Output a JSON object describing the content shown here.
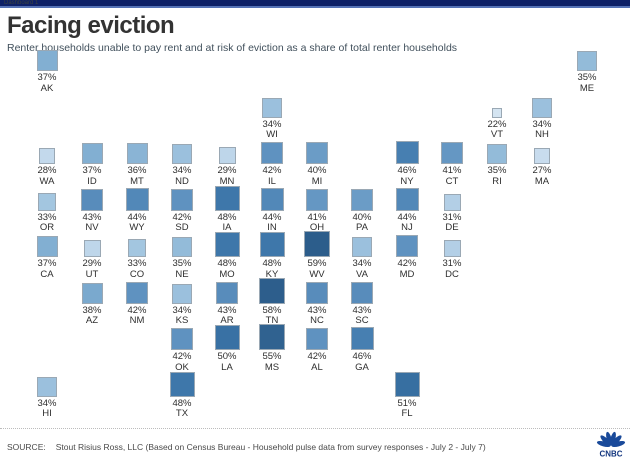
{
  "top_bar": {
    "label": "Dashboard 1",
    "bg": "#0e2066"
  },
  "header": {
    "title": "Facing eviction",
    "subtitle": "Renter households unable to pay rent and at risk of eviction as a share of total renter households"
  },
  "footer": {
    "source_label": "SOURCE:",
    "source_text": "Stout Risius Ross, LLC (Based on Census Bureau - Household pulse data from survey responses - July 2 - July 7)",
    "logo_text": "CNBC",
    "logo_color": "#1a4a9a"
  },
  "chart_data": {
    "type": "heatmap",
    "subtype": "us-state-tile-cartogram",
    "title": "Facing eviction",
    "subtitle": "Renter households unable to pay rent and at risk of eviction as a share of total renter households",
    "unit": "%",
    "value_range": [
      22,
      59
    ],
    "encoding": {
      "color": "value, light blue (low) to dark navy (high)",
      "size": "square size scales with value"
    },
    "states": [
      {
        "abbr": "AK",
        "value": 37,
        "col": 0,
        "row": 0,
        "color": "#82afd2"
      },
      {
        "abbr": "ME",
        "value": 35,
        "col": 12,
        "row": 0,
        "color": "#93bbd9"
      },
      {
        "abbr": "WI",
        "value": 34,
        "col": 5,
        "row": 1,
        "color": "#9bc0dd"
      },
      {
        "abbr": "VT",
        "value": 22,
        "col": 10,
        "row": 1,
        "color": "#d4e4f1"
      },
      {
        "abbr": "NH",
        "value": 34,
        "col": 11,
        "row": 1,
        "color": "#9bc0dd"
      },
      {
        "abbr": "WA",
        "value": 28,
        "col": 0,
        "row": 2,
        "color": "#c3d9ec"
      },
      {
        "abbr": "ID",
        "value": 37,
        "col": 1,
        "row": 2,
        "color": "#82afd2"
      },
      {
        "abbr": "MT",
        "value": 36,
        "col": 2,
        "row": 2,
        "color": "#8ab4d5"
      },
      {
        "abbr": "ND",
        "value": 34,
        "col": 3,
        "row": 2,
        "color": "#9bc0dd"
      },
      {
        "abbr": "MN",
        "value": 29,
        "col": 4,
        "row": 2,
        "color": "#bed6ea"
      },
      {
        "abbr": "IL",
        "value": 42,
        "col": 5,
        "row": 2,
        "color": "#5f92c0"
      },
      {
        "abbr": "MI",
        "value": 40,
        "col": 6,
        "row": 2,
        "color": "#6b9cc6"
      },
      {
        "abbr": "NY",
        "value": 46,
        "col": 8,
        "row": 2,
        "color": "#477fb1"
      },
      {
        "abbr": "CT",
        "value": 41,
        "col": 9,
        "row": 2,
        "color": "#6597c3"
      },
      {
        "abbr": "RI",
        "value": 35,
        "col": 10,
        "row": 2,
        "color": "#93bbd9"
      },
      {
        "abbr": "MA",
        "value": 27,
        "col": 11,
        "row": 2,
        "color": "#c8dcee"
      },
      {
        "abbr": "OR",
        "value": 33,
        "col": 0,
        "row": 3,
        "color": "#a3c6e0"
      },
      {
        "abbr": "NV",
        "value": 43,
        "col": 1,
        "row": 3,
        "color": "#588cbb"
      },
      {
        "abbr": "WY",
        "value": 44,
        "col": 2,
        "row": 3,
        "color": "#5288b8"
      },
      {
        "abbr": "SD",
        "value": 42,
        "col": 3,
        "row": 3,
        "color": "#5f92c0"
      },
      {
        "abbr": "IA",
        "value": 48,
        "col": 4,
        "row": 3,
        "color": "#3e77aa"
      },
      {
        "abbr": "IN",
        "value": 44,
        "col": 5,
        "row": 3,
        "color": "#5288b8"
      },
      {
        "abbr": "OH",
        "value": 41,
        "col": 6,
        "row": 3,
        "color": "#6597c3"
      },
      {
        "abbr": "PA",
        "value": 40,
        "col": 7,
        "row": 3,
        "color": "#6b9cc6"
      },
      {
        "abbr": "NJ",
        "value": 44,
        "col": 8,
        "row": 3,
        "color": "#5288b8"
      },
      {
        "abbr": "DE",
        "value": 31,
        "col": 9,
        "row": 3,
        "color": "#b3cfe6"
      },
      {
        "abbr": "CA",
        "value": 37,
        "col": 0,
        "row": 4,
        "color": "#82afd2"
      },
      {
        "abbr": "UT",
        "value": 29,
        "col": 1,
        "row": 4,
        "color": "#bed6ea"
      },
      {
        "abbr": "CO",
        "value": 33,
        "col": 2,
        "row": 4,
        "color": "#a3c6e0"
      },
      {
        "abbr": "NE",
        "value": 35,
        "col": 3,
        "row": 4,
        "color": "#93bbd9"
      },
      {
        "abbr": "MO",
        "value": 48,
        "col": 4,
        "row": 4,
        "color": "#3e77aa"
      },
      {
        "abbr": "KY",
        "value": 48,
        "col": 5,
        "row": 4,
        "color": "#3e77aa"
      },
      {
        "abbr": "WV",
        "value": 59,
        "col": 6,
        "row": 4,
        "color": "#2c5d8b"
      },
      {
        "abbr": "VA",
        "value": 34,
        "col": 7,
        "row": 4,
        "color": "#9bc0dd"
      },
      {
        "abbr": "MD",
        "value": 42,
        "col": 8,
        "row": 4,
        "color": "#5f92c0"
      },
      {
        "abbr": "DC",
        "value": 31,
        "col": 9,
        "row": 4,
        "color": "#b3cfe6"
      },
      {
        "abbr": "AZ",
        "value": 38,
        "col": 1,
        "row": 5,
        "color": "#7aa9ce"
      },
      {
        "abbr": "NM",
        "value": 42,
        "col": 2,
        "row": 5,
        "color": "#5f92c0"
      },
      {
        "abbr": "KS",
        "value": 34,
        "col": 3,
        "row": 5,
        "color": "#9bc0dd"
      },
      {
        "abbr": "AR",
        "value": 43,
        "col": 4,
        "row": 5,
        "color": "#588cbb"
      },
      {
        "abbr": "TN",
        "value": 58,
        "col": 5,
        "row": 5,
        "color": "#2d5e8c"
      },
      {
        "abbr": "NC",
        "value": 43,
        "col": 6,
        "row": 5,
        "color": "#588cbb"
      },
      {
        "abbr": "SC",
        "value": 43,
        "col": 7,
        "row": 5,
        "color": "#588cbb"
      },
      {
        "abbr": "OK",
        "value": 42,
        "col": 3,
        "row": 6,
        "color": "#5f92c0"
      },
      {
        "abbr": "LA",
        "value": 50,
        "col": 4,
        "row": 6,
        "color": "#3971a4"
      },
      {
        "abbr": "MS",
        "value": 55,
        "col": 5,
        "row": 6,
        "color": "#306290"
      },
      {
        "abbr": "AL",
        "value": 42,
        "col": 6,
        "row": 6,
        "color": "#5f92c0"
      },
      {
        "abbr": "GA",
        "value": 46,
        "col": 7,
        "row": 6,
        "color": "#477fb1"
      },
      {
        "abbr": "HI",
        "value": 34,
        "col": 0,
        "row": 7,
        "color": "#9bc0dd"
      },
      {
        "abbr": "TX",
        "value": 48,
        "col": 3,
        "row": 7,
        "color": "#3e77aa"
      },
      {
        "abbr": "FL",
        "value": 51,
        "col": 8,
        "row": 7,
        "color": "#376fa1"
      }
    ]
  }
}
